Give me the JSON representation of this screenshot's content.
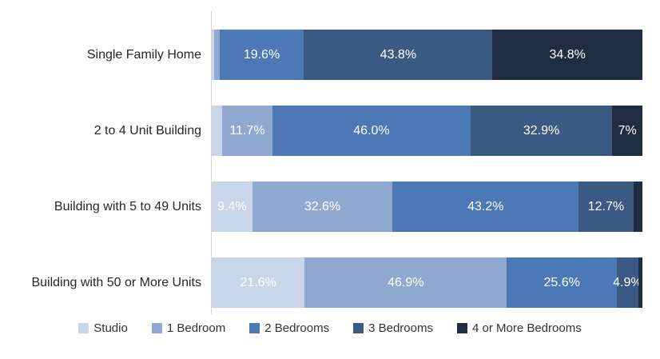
{
  "chart_data": {
    "type": "bar",
    "orientation": "horizontal",
    "stacked": true,
    "unit": "percent",
    "title": "",
    "xlabel": "",
    "ylabel": "",
    "xlim": [
      0,
      100
    ],
    "grid": false,
    "legend_position": "bottom",
    "axis_color": "#d6d6d6",
    "category_label_color": "#262626",
    "value_label_color": "#ffffff",
    "categories": [
      "Single Family Home",
      "2 to 4 Unit Building",
      "Building with 5 to 49 Units",
      "Building with 50 or More Units"
    ],
    "series": [
      {
        "name": "Studio",
        "color": "#c9d5e8",
        "values": [
          0.5,
          2.4,
          9.4,
          21.6
        ],
        "labels": [
          "",
          "",
          "9.4%",
          "21.6%"
        ]
      },
      {
        "name": "1 Bedroom",
        "color": "#91a8d1",
        "values": [
          1.3,
          11.7,
          32.6,
          46.9
        ],
        "labels": [
          "",
          "11.7%",
          "32.6%",
          "46.9%"
        ]
      },
      {
        "name": "2 Bedrooms",
        "color": "#4d78b6",
        "values": [
          19.6,
          46.0,
          43.2,
          25.6
        ],
        "labels": [
          "19.6%",
          "46.0%",
          "43.2%",
          "25.6%"
        ]
      },
      {
        "name": "3 Bedrooms",
        "color": "#3b5a83",
        "values": [
          43.8,
          32.9,
          12.7,
          4.9
        ],
        "labels": [
          "43.8%",
          "32.9%",
          "12.7%",
          "4.9%"
        ]
      },
      {
        "name": "4 or More Bedrooms",
        "color": "#1f2c42",
        "values": [
          34.8,
          7.0,
          2.1,
          1.0
        ],
        "labels": [
          "34.8%",
          "7%",
          "",
          ""
        ]
      }
    ]
  }
}
